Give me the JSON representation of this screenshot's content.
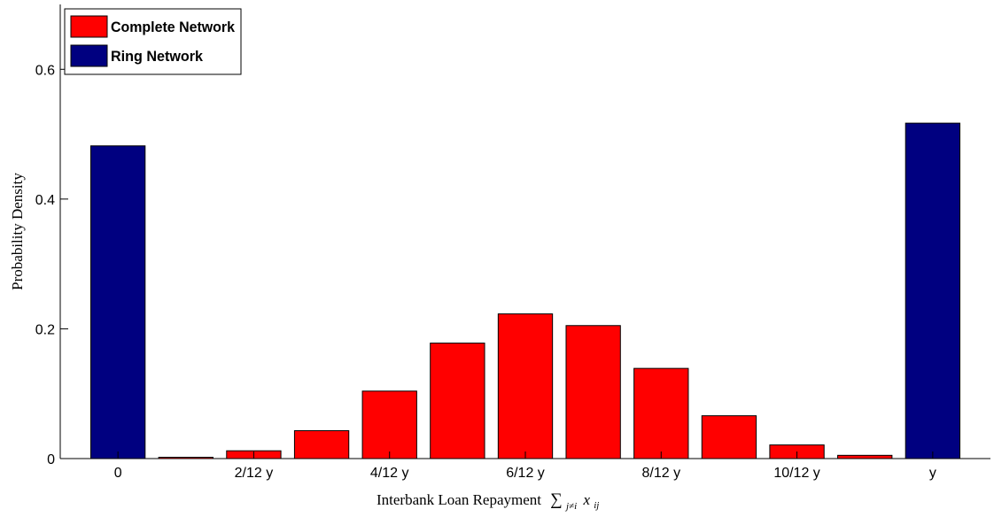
{
  "chart_data": {
    "type": "bar",
    "ylabel": "Probability Density",
    "xlabel": {
      "text": "Interbank Loan Repayment",
      "math_symbol": "∑",
      "math_subscript": "j≠i",
      "math_var": "x",
      "math_var_subscript": "ij"
    },
    "ylim": [
      0,
      0.7
    ],
    "yticks": [
      0,
      0.2,
      0.4,
      0.6
    ],
    "ytick_labels": [
      "0",
      "0.2",
      "0.4",
      "0.6"
    ],
    "xticks": [
      0,
      2,
      4,
      6,
      8,
      10,
      12
    ],
    "xtick_labels": [
      "0",
      "2/12 y",
      "4/12 y",
      "6/12 y",
      "8/12 y",
      "10/12 y",
      "y"
    ],
    "xlim": [
      -0.85,
      12.85
    ],
    "legend_position": "top-left",
    "series": [
      {
        "name": "Complete Network",
        "color": "#ff0000",
        "x": [
          1,
          2,
          3,
          4,
          5,
          6,
          7,
          8,
          9,
          10,
          11
        ],
        "values": [
          0.002,
          0.012,
          0.043,
          0.104,
          0.178,
          0.223,
          0.205,
          0.139,
          0.066,
          0.021,
          0.005
        ]
      },
      {
        "name": "Ring Network",
        "color": "#000080",
        "x": [
          0,
          12
        ],
        "values": [
          0.482,
          0.517
        ]
      }
    ]
  }
}
